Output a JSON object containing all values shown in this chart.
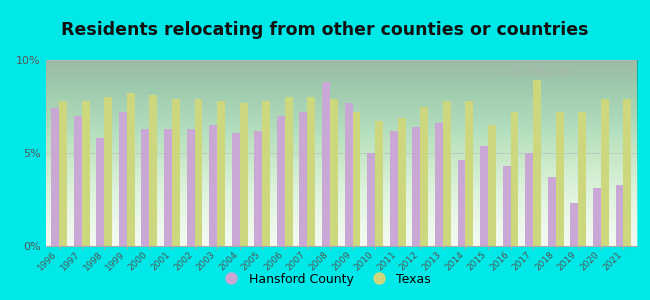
{
  "title": "Residents relocating from other counties or countries",
  "years": [
    1996,
    1997,
    1998,
    1999,
    2000,
    2001,
    2002,
    2003,
    2004,
    2005,
    2006,
    2007,
    2008,
    2009,
    2010,
    2011,
    2012,
    2013,
    2014,
    2015,
    2016,
    2017,
    2018,
    2019,
    2020,
    2021
  ],
  "hansford": [
    7.4,
    7.0,
    5.8,
    7.2,
    6.3,
    6.3,
    6.3,
    6.5,
    6.1,
    6.2,
    7.0,
    7.2,
    8.8,
    7.7,
    5.0,
    6.2,
    6.4,
    6.6,
    4.6,
    5.4,
    4.3,
    5.0,
    3.7,
    2.3,
    3.1,
    3.3
  ],
  "texas": [
    7.8,
    7.8,
    8.0,
    8.2,
    8.1,
    7.9,
    7.9,
    7.8,
    7.7,
    7.8,
    8.0,
    8.0,
    7.9,
    7.2,
    6.7,
    6.9,
    7.5,
    7.8,
    7.8,
    6.5,
    7.2,
    8.9,
    7.2,
    7.2,
    7.9,
    7.9
  ],
  "hansford_color": "#c9a8d5",
  "texas_color": "#cdd87e",
  "bg_top_color": "#f5fdf0",
  "bg_bottom_color": "#dff0d8",
  "outer_background": "#00e8e8",
  "ylim": [
    0,
    10
  ],
  "yticks": [
    0,
    5,
    10
  ],
  "ytick_labels": [
    "0%",
    "5%",
    "10%"
  ],
  "bar_width": 0.35,
  "title_fontsize": 12.5,
  "legend_labels": [
    "Hansford County",
    "Texas"
  ]
}
